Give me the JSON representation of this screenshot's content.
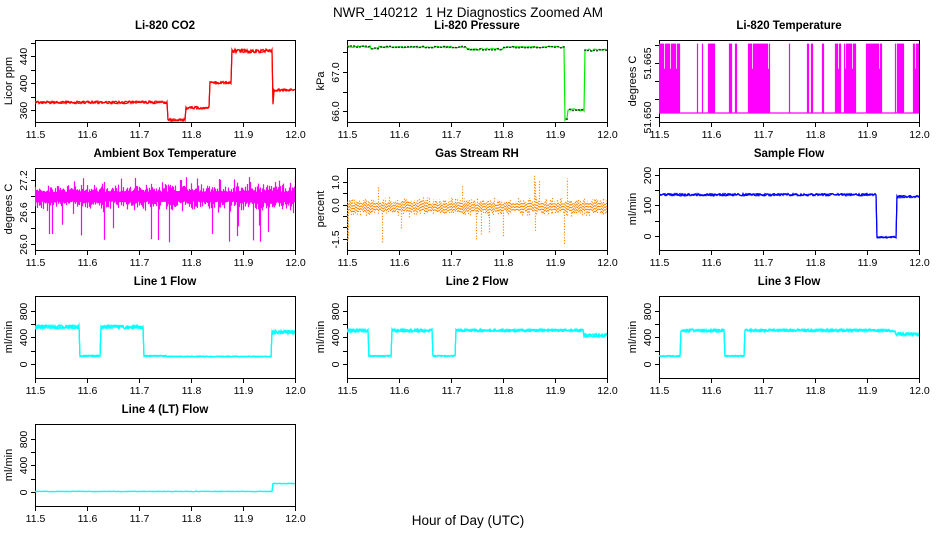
{
  "title": "NWR_140212  1 Hz Diagnostics Zoomed AM",
  "xlabel": "Hour of Day (UTC)",
  "x_axis": {
    "lim": [
      11.5,
      12.0
    ],
    "ticks": [
      "11.5",
      "11.6",
      "11.7",
      "11.8",
      "11.9",
      "12.0"
    ]
  },
  "chart_data": [
    {
      "slug": "li820-co2",
      "type": "line",
      "style": "steps",
      "title": "Li-820 CO2",
      "ylabel": "Licor ppm",
      "color": "#FF0000",
      "ylim": [
        343,
        464
      ],
      "yticks": [
        {
          "v": 360,
          "label": "360"
        },
        {
          "v": 380,
          "label": ""
        },
        {
          "v": 400,
          "label": "400"
        },
        {
          "v": 420,
          "label": ""
        },
        {
          "v": 440,
          "label": "440"
        },
        {
          "v": 460,
          "label": ""
        }
      ],
      "segments": [
        [
          11.5,
          11.755,
          372,
          2
        ],
        [
          11.755,
          11.79,
          346,
          2
        ],
        [
          11.79,
          11.835,
          364,
          2
        ],
        [
          11.835,
          11.878,
          401,
          2
        ],
        [
          11.878,
          11.956,
          448,
          3
        ],
        [
          11.956,
          11.959,
          369,
          2
        ],
        [
          11.959,
          12.0,
          390,
          2
        ]
      ],
      "passes": 2
    },
    {
      "slug": "li820-pressure",
      "type": "line",
      "style": "steps-dots",
      "title": "Li-820 Pressure",
      "ylabel": "kPa",
      "color": "#00EE00",
      "dot_color": "#000000",
      "ylim": [
        65.72,
        67.82
      ],
      "yticks": [
        {
          "v": 66.0,
          "label": "66.0"
        },
        {
          "v": 66.5,
          "label": ""
        },
        {
          "v": 67.0,
          "label": "67.0"
        },
        {
          "v": 67.5,
          "label": ""
        }
      ],
      "segments": [
        [
          11.5,
          11.545,
          67.65,
          0.025
        ],
        [
          11.545,
          11.56,
          67.6,
          0.02
        ],
        [
          11.56,
          11.73,
          67.64,
          0.02
        ],
        [
          11.73,
          11.8,
          67.58,
          0.03
        ],
        [
          11.8,
          11.918,
          67.64,
          0.02
        ],
        [
          11.918,
          11.924,
          65.8,
          0.04
        ],
        [
          11.924,
          11.957,
          66.03,
          0.03
        ],
        [
          11.957,
          12.0,
          67.56,
          0.03
        ]
      ],
      "passes": 1
    },
    {
      "slug": "li820-temperature",
      "type": "line",
      "style": "telegraph",
      "title": "Li-820 Temperature",
      "ylabel": "degrees C",
      "color": "#FF00FF",
      "ylim": [
        51.6487,
        51.6715
      ],
      "yticks": [
        {
          "v": 51.65,
          "label": "51.650"
        },
        {
          "v": 51.655,
          "label": ""
        },
        {
          "v": 51.66,
          "label": ""
        },
        {
          "v": 51.665,
          "label": "51.665"
        },
        {
          "v": 51.67,
          "label": ""
        }
      ],
      "telegraph": {
        "lo": 51.6512,
        "hi": 51.6705,
        "hi_mid": 51.6635,
        "flip_p": 0.11,
        "mid_p": 0.06
      }
    },
    {
      "slug": "ambient-box-temperature",
      "type": "line",
      "style": "noise",
      "title": "Ambient Box Temperature",
      "ylabel": "degrees C",
      "color": "#FF00FF",
      "ylim": [
        25.88,
        27.42
      ],
      "yticks": [
        {
          "v": 26.0,
          "label": "26.0"
        },
        {
          "v": 26.3,
          "label": ""
        },
        {
          "v": 26.6,
          "label": "26.6"
        },
        {
          "v": 26.9,
          "label": ""
        },
        {
          "v": 27.2,
          "label": "27.2"
        }
      ],
      "noise": {
        "center": 26.88,
        "amp": 0.25,
        "spike_lo": 26.0,
        "p_spike_lo": 0.05,
        "spike_hi": 27.28,
        "p_spike_hi": 0.03
      }
    },
    {
      "slug": "gas-stream-rh",
      "type": "scatter",
      "style": "noise-dotted",
      "title": "Gas Stream RH",
      "ylabel": "percent",
      "color": "#FF8800",
      "ylim": [
        -2.0,
        1.62
      ],
      "yticks": [
        {
          "v": -1.5,
          "label": "-1.5"
        },
        {
          "v": -1.0,
          "label": ""
        },
        {
          "v": -0.5,
          "label": ""
        },
        {
          "v": 0.0,
          "label": "0.0"
        },
        {
          "v": 0.5,
          "label": ""
        },
        {
          "v": 1.0,
          "label": "1.0"
        }
      ],
      "noise": {
        "center": -0.08,
        "amp": 0.38,
        "spike_lo": -1.78,
        "p_spike_lo": 0.025,
        "spike_hi": 1.3,
        "p_spike_hi": 0.025
      }
    },
    {
      "slug": "sample-flow",
      "type": "line",
      "style": "steps",
      "title": "Sample Flow",
      "ylabel": "ml/min",
      "color": "#0000FF",
      "ylim": [
        -45,
        222
      ],
      "yticks": [
        {
          "v": 0,
          "label": "0"
        },
        {
          "v": 50,
          "label": ""
        },
        {
          "v": 100,
          "label": "100"
        },
        {
          "v": 150,
          "label": ""
        },
        {
          "v": 200,
          "label": "200"
        }
      ],
      "segments": [
        [
          11.5,
          11.918,
          135,
          4
        ],
        [
          11.918,
          11.957,
          -3,
          3
        ],
        [
          11.957,
          12.0,
          129,
          4
        ]
      ],
      "passes": 2
    },
    {
      "slug": "line1-flow",
      "type": "line",
      "style": "steps",
      "title": "Line 1 Flow",
      "ylabel": "ml/min",
      "color": "#00FFFF",
      "ylim": [
        -215,
        1030
      ],
      "yticks": [
        {
          "v": 0,
          "label": "0"
        },
        {
          "v": 200,
          "label": ""
        },
        {
          "v": 400,
          "label": "400"
        },
        {
          "v": 600,
          "label": ""
        },
        {
          "v": 800,
          "label": "800"
        }
      ],
      "segments": [
        [
          11.5,
          11.585,
          560,
          30
        ],
        [
          11.585,
          11.625,
          120,
          12
        ],
        [
          11.625,
          11.708,
          560,
          30
        ],
        [
          11.708,
          11.752,
          120,
          10
        ],
        [
          11.752,
          11.955,
          112,
          8
        ],
        [
          11.955,
          12.0,
          480,
          30
        ]
      ],
      "passes": 3
    },
    {
      "slug": "line2-flow",
      "type": "line",
      "style": "steps",
      "title": "Line 2 Flow",
      "ylabel": "ml/min",
      "color": "#00FFFF",
      "ylim": [
        -215,
        1030
      ],
      "yticks": [
        {
          "v": 0,
          "label": "0"
        },
        {
          "v": 200,
          "label": ""
        },
        {
          "v": 400,
          "label": "400"
        },
        {
          "v": 600,
          "label": ""
        },
        {
          "v": 800,
          "label": "800"
        }
      ],
      "segments": [
        [
          11.5,
          11.542,
          505,
          25
        ],
        [
          11.542,
          11.585,
          120,
          10
        ],
        [
          11.585,
          11.665,
          505,
          25
        ],
        [
          11.665,
          11.708,
          120,
          10
        ],
        [
          11.708,
          11.955,
          508,
          22
        ],
        [
          11.955,
          12.0,
          432,
          28
        ]
      ],
      "passes": 3
    },
    {
      "slug": "line3-flow",
      "type": "line",
      "style": "steps",
      "title": "Line 3 Flow",
      "ylabel": "ml/min",
      "color": "#00FFFF",
      "ylim": [
        -215,
        1030
      ],
      "yticks": [
        {
          "v": 0,
          "label": "0"
        },
        {
          "v": 200,
          "label": ""
        },
        {
          "v": 400,
          "label": "400"
        },
        {
          "v": 600,
          "label": ""
        },
        {
          "v": 800,
          "label": "800"
        }
      ],
      "segments": [
        [
          11.5,
          11.542,
          118,
          10
        ],
        [
          11.542,
          11.625,
          505,
          25
        ],
        [
          11.625,
          11.665,
          120,
          10
        ],
        [
          11.665,
          11.955,
          508,
          22
        ],
        [
          11.955,
          12.0,
          448,
          28
        ]
      ],
      "passes": 3
    },
    {
      "slug": "line4-lt-flow",
      "type": "line",
      "style": "steps",
      "title": "Line 4 (LT) Flow",
      "ylabel": "ml/min",
      "color": "#00FFFF",
      "ylim": [
        -215,
        1030
      ],
      "yticks": [
        {
          "v": 0,
          "label": "0"
        },
        {
          "v": 200,
          "label": ""
        },
        {
          "v": 400,
          "label": "400"
        },
        {
          "v": 600,
          "label": ""
        },
        {
          "v": 800,
          "label": "800"
        }
      ],
      "segments": [
        [
          11.5,
          11.957,
          6,
          4
        ],
        [
          11.957,
          12.0,
          126,
          5
        ]
      ],
      "passes": 2
    }
  ]
}
